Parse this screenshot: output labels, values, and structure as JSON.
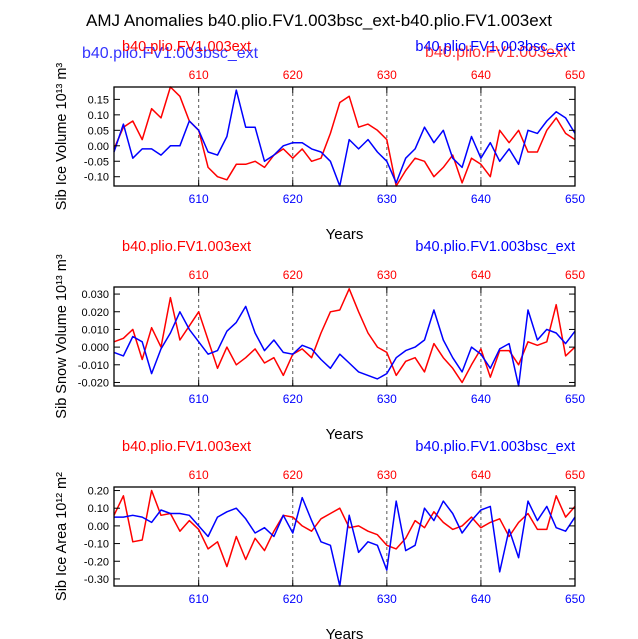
{
  "title": "AMJ Anomalies b40.plio.FV1.003bsc_ext-b40.plio.FV1.003ext",
  "ghost_labels": {
    "left": "b40.plio.FV1.003bsc_ext",
    "right": "b40.plio.FV1.003ext"
  },
  "colors": {
    "red": "#ff0000",
    "blue": "#0000ff",
    "axis": "#000000",
    "grid": "#555555"
  },
  "chart_data": [
    {
      "type": "line",
      "ylabel": "Sib Ice Volume 10¹³ m³",
      "xlabel": "Years",
      "legend_left": "b40.plio.FV1.003ext",
      "legend_right": "b40.plio.FV1.003bsc_ext",
      "xlim": [
        601,
        650
      ],
      "ylim": [
        -0.13,
        0.19
      ],
      "xticks": [
        610,
        620,
        630,
        640,
        650
      ],
      "yticks": [
        -0.1,
        -0.05,
        0.0,
        0.05,
        0.1,
        0.15
      ],
      "ytick_labels": [
        "-0.10",
        "-0.05",
        "0.00",
        "0.05",
        "0.10",
        "0.15"
      ],
      "series": [
        {
          "name": "b40.plio.FV1.003ext",
          "color": "red",
          "values": [
            -0.01,
            0.06,
            0.08,
            0.02,
            0.12,
            0.09,
            0.19,
            0.16,
            0.08,
            0.05,
            -0.07,
            -0.1,
            -0.11,
            -0.06,
            -0.06,
            -0.05,
            -0.07,
            -0.03,
            -0.01,
            -0.04,
            -0.01,
            -0.05,
            -0.04,
            0.04,
            0.14,
            0.16,
            0.06,
            0.07,
            0.05,
            0.02,
            -0.13,
            -0.08,
            -0.04,
            -0.05,
            -0.1,
            -0.07,
            -0.03,
            -0.12,
            -0.04,
            -0.06,
            -0.1,
            0.05,
            0.01,
            0.05,
            -0.02,
            -0.02,
            0.05,
            0.09,
            0.04,
            0.02
          ]
        },
        {
          "name": "b40.plio.FV1.003bsc_ext",
          "color": "blue",
          "values": [
            -0.02,
            0.07,
            -0.04,
            -0.01,
            -0.01,
            -0.03,
            0.0,
            0.0,
            0.08,
            0.05,
            -0.02,
            -0.03,
            0.03,
            0.18,
            0.06,
            0.06,
            -0.05,
            -0.03,
            0.0,
            0.01,
            0.01,
            -0.01,
            -0.02,
            -0.05,
            -0.13,
            0.02,
            -0.01,
            0.02,
            -0.02,
            -0.05,
            -0.12,
            -0.04,
            -0.01,
            0.06,
            0.01,
            0.05,
            -0.04,
            -0.07,
            0.03,
            -0.04,
            0.01,
            -0.05,
            -0.01,
            -0.06,
            0.05,
            0.04,
            0.08,
            0.11,
            0.09,
            0.04
          ]
        }
      ]
    },
    {
      "type": "line",
      "ylabel": "Sib Snow Volume 10¹³ m³",
      "xlabel": "Years",
      "legend_left": "b40.plio.FV1.003ext",
      "legend_right": "b40.plio.FV1.003bsc_ext",
      "xlim": [
        601,
        650
      ],
      "ylim": [
        -0.022,
        0.034
      ],
      "xticks": [
        610,
        620,
        630,
        640,
        650
      ],
      "yticks": [
        -0.02,
        -0.01,
        0.0,
        0.01,
        0.02,
        0.03
      ],
      "ytick_labels": [
        "-0.020",
        "-0.010",
        "0.000",
        "0.010",
        "0.020",
        "0.030"
      ],
      "series": [
        {
          "name": "b40.plio.FV1.003ext",
          "color": "red",
          "values": [
            0.003,
            0.005,
            0.01,
            -0.007,
            0.011,
            0.0,
            0.028,
            0.004,
            0.012,
            0.02,
            0.004,
            -0.012,
            0.0,
            -0.01,
            -0.006,
            -0.001,
            -0.009,
            -0.006,
            -0.016,
            -0.004,
            -0.001,
            -0.006,
            0.008,
            0.02,
            0.021,
            0.033,
            0.02,
            0.008,
            0.0,
            -0.003,
            -0.016,
            -0.008,
            -0.006,
            -0.014,
            0.002,
            -0.006,
            -0.012,
            -0.02,
            -0.01,
            -0.001,
            -0.017,
            -0.002,
            -0.002,
            -0.01,
            0.003,
            0.001,
            0.003,
            0.024,
            -0.005,
            0.0
          ]
        },
        {
          "name": "b40.plio.FV1.003bsc_ext",
          "color": "blue",
          "values": [
            -0.003,
            -0.005,
            0.006,
            0.003,
            -0.015,
            -0.001,
            0.008,
            0.02,
            0.01,
            0.003,
            -0.004,
            -0.002,
            0.009,
            0.014,
            0.023,
            0.008,
            -0.002,
            0.004,
            -0.003,
            -0.004,
            0.001,
            -0.001,
            -0.007,
            -0.012,
            -0.004,
            -0.009,
            -0.014,
            -0.016,
            -0.018,
            -0.015,
            -0.006,
            -0.002,
            0.0,
            0.004,
            0.021,
            0.004,
            -0.006,
            -0.014,
            0.0,
            -0.004,
            -0.012,
            -0.001,
            0.002,
            -0.022,
            0.021,
            0.004,
            0.01,
            0.008,
            0.002,
            0.009
          ]
        }
      ]
    },
    {
      "type": "line",
      "ylabel": "Sib Ice Area 10¹² m²",
      "xlabel": "Years",
      "legend_left": "b40.plio.FV1.003ext",
      "legend_right": "b40.plio.FV1.003bsc_ext",
      "xlim": [
        601,
        650
      ],
      "ylim": [
        -0.34,
        0.22
      ],
      "xticks": [
        610,
        620,
        630,
        640,
        650
      ],
      "yticks": [
        -0.3,
        -0.2,
        -0.1,
        0.0,
        0.1,
        0.2
      ],
      "ytick_labels": [
        "-0.30",
        "-0.20",
        "-0.10",
        "0.00",
        "0.10",
        "0.20"
      ],
      "series": [
        {
          "name": "b40.plio.FV1.003ext",
          "color": "red",
          "values": [
            0.06,
            0.17,
            -0.09,
            -0.08,
            0.2,
            0.06,
            0.07,
            -0.03,
            0.03,
            -0.02,
            -0.13,
            -0.09,
            -0.23,
            -0.06,
            -0.19,
            -0.07,
            -0.14,
            -0.03,
            0.06,
            0.05,
            0.0,
            -0.03,
            0.04,
            0.07,
            0.1,
            -0.01,
            0.0,
            -0.03,
            -0.05,
            -0.11,
            -0.13,
            -0.07,
            0.03,
            -0.01,
            0.08,
            0.02,
            -0.02,
            0.0,
            0.05,
            -0.01,
            0.02,
            0.04,
            -0.06,
            0.02,
            0.07,
            -0.02,
            -0.02,
            0.17,
            0.05,
            0.11
          ]
        },
        {
          "name": "b40.plio.FV1.003bsc_ext",
          "color": "blue",
          "values": [
            0.05,
            0.05,
            0.06,
            0.05,
            0.02,
            0.09,
            0.07,
            0.07,
            0.06,
            0.0,
            -0.06,
            0.05,
            0.08,
            0.1,
            0.04,
            -0.04,
            -0.01,
            -0.06,
            0.06,
            -0.04,
            0.16,
            0.03,
            -0.09,
            -0.11,
            -0.34,
            0.06,
            -0.15,
            -0.09,
            -0.11,
            -0.25,
            0.14,
            -0.14,
            -0.11,
            0.1,
            0.03,
            0.14,
            0.07,
            -0.04,
            0.03,
            0.09,
            0.11,
            -0.26,
            -0.02,
            -0.18,
            0.14,
            0.03,
            0.11,
            -0.01,
            -0.03,
            0.05
          ]
        }
      ]
    }
  ]
}
